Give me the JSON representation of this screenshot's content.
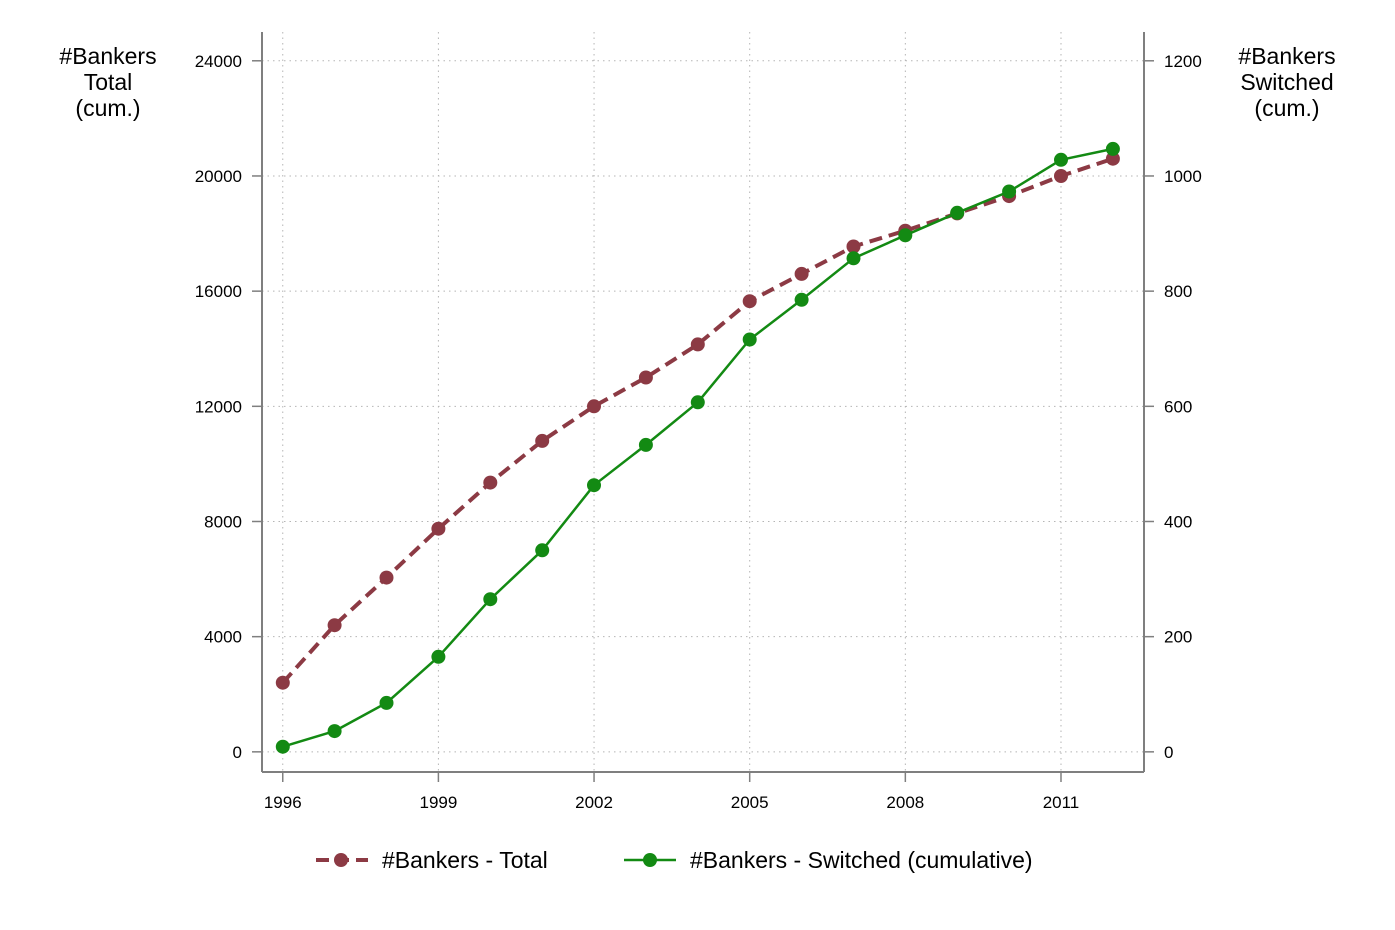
{
  "chart_data": {
    "type": "line",
    "x": [
      1996,
      1997,
      1998,
      1999,
      2000,
      2001,
      2002,
      2003,
      2004,
      2005,
      2006,
      2007,
      2008,
      2009,
      2010,
      2011,
      2012
    ],
    "x_ticks": [
      1996,
      1999,
      2002,
      2005,
      2008,
      2011
    ],
    "xlim": [
      1995.6,
      2012.6
    ],
    "left_axis": {
      "label_lines": [
        "#Bankers",
        "Total",
        "(cum.)"
      ],
      "ylim": [
        -700,
        25000
      ],
      "ticks": [
        0,
        4000,
        8000,
        12000,
        16000,
        20000,
        24000
      ]
    },
    "right_axis": {
      "label_lines": [
        "#Bankers",
        "Switched",
        "(cum.)"
      ],
      "ylim": [
        -35,
        1250
      ],
      "ticks": [
        0,
        200,
        400,
        600,
        800,
        1000,
        1200
      ]
    },
    "grid": true,
    "legend_position": "bottom",
    "series": [
      {
        "name": "#Bankers - Total",
        "axis": "left",
        "color": "#8c3a44",
        "dashed": true,
        "values": [
          2400,
          4400,
          6050,
          7750,
          9350,
          10800,
          12000,
          13000,
          14150,
          15650,
          16600,
          17550,
          18100,
          18700,
          19300,
          20000,
          20600
        ]
      },
      {
        "name": "#Bankers - Switched (cumulative)",
        "axis": "right",
        "color": "#138a13",
        "dashed": false,
        "values": [
          9,
          36,
          85,
          165,
          265,
          350,
          463,
          533,
          607,
          716,
          785,
          857,
          897,
          936,
          973,
          1028,
          1047
        ]
      }
    ]
  }
}
